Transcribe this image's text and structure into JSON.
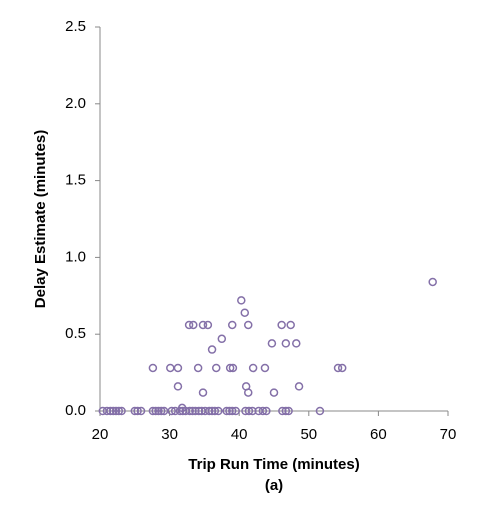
{
  "chart_data": {
    "type": "scatter",
    "x_label": "Trip Run Time (minutes)",
    "caption": "(a)",
    "y_label": "Delay Estimate (minutes)",
    "color": "#8470a8",
    "xlim": [
      20,
      70
    ],
    "xticks": [
      20,
      30,
      40,
      50,
      60,
      70
    ],
    "ylim": [
      0,
      2.5
    ],
    "yticks": [
      {
        "value": 0,
        "label": "0.0"
      },
      {
        "value": 0.5,
        "label": "0.5"
      },
      {
        "value": 1,
        "label": "1.0"
      },
      {
        "value": 1.5,
        "label": "1.5"
      },
      {
        "value": 2,
        "label": "2.0"
      },
      {
        "value": 2.5,
        "label": "2.5"
      }
    ],
    "x": [
      20.4,
      21,
      21.5,
      21.9,
      22.3,
      22.7,
      23.1,
      25,
      25.4,
      25.9,
      27.6,
      28,
      28.4,
      28.8,
      29.2,
      30.3,
      30.8,
      31.5,
      31.9,
      32.3,
      32.9,
      33.3,
      33.7,
      34.2,
      34.6,
      35.1,
      35.7,
      36.1,
      36.5,
      37,
      38.2,
      38.6,
      39,
      39.5,
      40.9,
      41.4,
      41.9,
      42.8,
      43.4,
      43.9,
      46.2,
      46.7,
      47.1,
      51.6,
      27.6,
      30.1,
      31.2,
      31.2,
      31.8,
      32.8,
      33.4,
      34.1,
      34.8,
      34.8,
      35.5,
      36.1,
      36.7,
      37.5,
      39.0,
      39.1,
      38.7,
      40.3,
      40.8,
      41.3,
      41.0,
      41.3,
      42.0,
      43.7,
      44.7,
      45.0,
      46.1,
      46.7,
      47.4,
      48.2,
      48.6,
      54.2,
      54.8,
      67.8
    ],
    "y": [
      0,
      0,
      0,
      0,
      0,
      0,
      0,
      0,
      0,
      0,
      0,
      0,
      0,
      0,
      0,
      0,
      0,
      0,
      0,
      0,
      0,
      0,
      0,
      0,
      0,
      0,
      0,
      0,
      0,
      0,
      0,
      0,
      0,
      0,
      0,
      0,
      0,
      0,
      0,
      0,
      0,
      0,
      0,
      0,
      0.28,
      0.28,
      0.28,
      0.16,
      0.02,
      0.56,
      0.56,
      0.28,
      0.12,
      0.56,
      0.56,
      0.4,
      0.28,
      0.47,
      0.56,
      0.28,
      0.28,
      0.72,
      0.64,
      0.56,
      0.16,
      0.12,
      0.28,
      0.28,
      0.44,
      0.12,
      0.56,
      0.44,
      0.56,
      0.44,
      0.16,
      0.28,
      0.28,
      0.84
    ]
  }
}
